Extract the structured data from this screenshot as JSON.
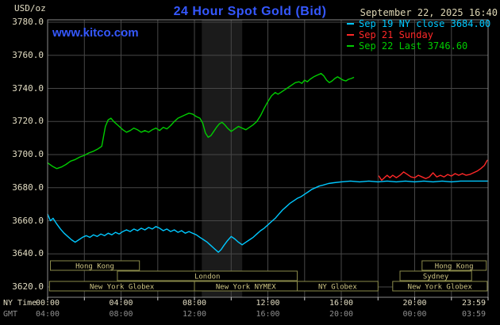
{
  "header": {
    "title": "24 Hour Spot Gold (Bid)",
    "datetime": "September 22, 2025 16:40",
    "units_label": "USD/oz",
    "watermark": "www.kitco.com"
  },
  "colors": {
    "title_blue": "#3558ff",
    "date_tan": "#ddd6b4",
    "axis_tan": "#e2dcc2",
    "gmt_gray": "#8f8f8f",
    "grid": "#474747",
    "border": "#8a8a8a",
    "tick": "#cccccc",
    "plot_bg": "#000000",
    "band": "#1b1b1b",
    "session_border": "#8a8a4a",
    "session_text": "#cfc684",
    "cyan": "#00c8ff",
    "red": "#ff2828",
    "green": "#00cc00"
  },
  "legend": [
    {
      "label": "Sep 19 NY close 3684.00",
      "color": "#00c8ff"
    },
    {
      "label": "Sep 21 Sunday",
      "color": "#ff2828"
    },
    {
      "label": "Sep 22 Last 3746.60",
      "color": "#00cc00"
    }
  ],
  "xaxis": {
    "ny_label": "NY Time",
    "gmt_label": "GMT",
    "ticks": [
      {
        "h": 0,
        "ny": "00:00",
        "gmt": "04:00"
      },
      {
        "h": 4,
        "ny": "04:00",
        "gmt": "08:00"
      },
      {
        "h": 8,
        "ny": "08:00",
        "gmt": "12:00"
      },
      {
        "h": 12,
        "ny": "12:00",
        "gmt": "16:00"
      },
      {
        "h": 16,
        "ny": "16:00",
        "gmt": "20:00"
      },
      {
        "h": 20,
        "ny": "20:00",
        "gmt": "00:00"
      },
      {
        "h": 23.983,
        "ny": "23:59",
        "gmt": "03:59"
      }
    ]
  },
  "sessions": {
    "rows": [
      {
        "row": 0,
        "boxes": [
          {
            "label": "Hong Kong",
            "start": 0.15,
            "end": 5.0
          },
          {
            "label": "Hong Kong",
            "start": 20.4,
            "end": 23.9
          }
        ]
      },
      {
        "row": 1,
        "boxes": [
          {
            "label": "London",
            "start": 3.8,
            "end": 13.6
          },
          {
            "label": "Sydney",
            "start": 19.2,
            "end": 23.1
          }
        ]
      },
      {
        "row": 2,
        "boxes": [
          {
            "label": "New York Globex",
            "start": 0.1,
            "end": 8.0
          },
          {
            "label": "New York NYMEX",
            "start": 8.0,
            "end": 13.6
          },
          {
            "label": "NY Globex",
            "start": 13.6,
            "end": 18.0
          },
          {
            "label": "New York Globex",
            "start": 18.8,
            "end": 23.95
          }
        ]
      }
    ]
  },
  "chart_data": {
    "type": "line",
    "title": "24 Hour Spot Gold (Bid)",
    "ylabel": "USD/oz",
    "ylim": [
      3620,
      3780
    ],
    "ytick_step": 20,
    "xlim_hours": [
      0,
      24
    ],
    "grid": true,
    "legend_position": "top-right",
    "shaded_band_hours": [
      8.4,
      10.6
    ],
    "xticks_ny": [
      "00:00",
      "04:00",
      "08:00",
      "12:00",
      "16:00",
      "20:00",
      "23:59"
    ],
    "xticks_gmt": [
      "04:00",
      "08:00",
      "12:00",
      "16:00",
      "20:00",
      "00:00",
      "03:59"
    ],
    "series": [
      {
        "id": "sep19",
        "name": "Sep 19 NY close",
        "color": "#00c8ff",
        "close": 3684.0,
        "points": [
          [
            0,
            3664
          ],
          [
            0.15,
            3660
          ],
          [
            0.3,
            3661.5
          ],
          [
            0.5,
            3658
          ],
          [
            0.7,
            3655
          ],
          [
            0.9,
            3652.5
          ],
          [
            1.1,
            3650.5
          ],
          [
            1.3,
            3648.5
          ],
          [
            1.5,
            3647
          ],
          [
            1.7,
            3648.5
          ],
          [
            1.9,
            3650
          ],
          [
            2.1,
            3651
          ],
          [
            2.3,
            3650
          ],
          [
            2.5,
            3651.5
          ],
          [
            2.7,
            3650.5
          ],
          [
            2.9,
            3652
          ],
          [
            3.1,
            3651
          ],
          [
            3.3,
            3652.5
          ],
          [
            3.5,
            3651.5
          ],
          [
            3.7,
            3653
          ],
          [
            3.9,
            3652
          ],
          [
            4.1,
            3653.5
          ],
          [
            4.3,
            3654.5
          ],
          [
            4.5,
            3653.5
          ],
          [
            4.7,
            3655
          ],
          [
            4.9,
            3654
          ],
          [
            5.1,
            3655.5
          ],
          [
            5.3,
            3654.5
          ],
          [
            5.5,
            3656
          ],
          [
            5.7,
            3655
          ],
          [
            5.9,
            3656.5
          ],
          [
            6.1,
            3655.5
          ],
          [
            6.3,
            3654
          ],
          [
            6.5,
            3655
          ],
          [
            6.7,
            3653.5
          ],
          [
            6.9,
            3654.5
          ],
          [
            7.1,
            3653
          ],
          [
            7.3,
            3654
          ],
          [
            7.5,
            3652.5
          ],
          [
            7.7,
            3653.5
          ],
          [
            7.9,
            3652.5
          ],
          [
            8.1,
            3651.5
          ],
          [
            8.3,
            3650
          ],
          [
            8.5,
            3648.5
          ],
          [
            8.7,
            3647
          ],
          [
            8.9,
            3645
          ],
          [
            9.1,
            3643
          ],
          [
            9.3,
            3641
          ],
          [
            9.45,
            3642.5
          ],
          [
            9.6,
            3645
          ],
          [
            9.8,
            3648
          ],
          [
            10,
            3650.5
          ],
          [
            10.2,
            3649
          ],
          [
            10.4,
            3647
          ],
          [
            10.6,
            3645.5
          ],
          [
            10.8,
            3647
          ],
          [
            11,
            3648.5
          ],
          [
            11.2,
            3650
          ],
          [
            11.4,
            3652
          ],
          [
            11.6,
            3654
          ],
          [
            11.8,
            3655.5
          ],
          [
            12,
            3657.5
          ],
          [
            12.2,
            3659.5
          ],
          [
            12.4,
            3661.5
          ],
          [
            12.6,
            3664
          ],
          [
            12.8,
            3666.5
          ],
          [
            13,
            3668.5
          ],
          [
            13.2,
            3670.5
          ],
          [
            13.4,
            3672
          ],
          [
            13.6,
            3673.5
          ],
          [
            13.8,
            3674.5
          ],
          [
            14,
            3676
          ],
          [
            14.2,
            3677.5
          ],
          [
            14.4,
            3679
          ],
          [
            14.6,
            3680
          ],
          [
            14.8,
            3681
          ],
          [
            15,
            3681.5
          ],
          [
            15.3,
            3682.5
          ],
          [
            15.6,
            3683
          ],
          [
            16,
            3683.5
          ],
          [
            16.5,
            3684
          ],
          [
            17,
            3683.5
          ],
          [
            17.5,
            3684
          ],
          [
            18,
            3683.5
          ],
          [
            18.5,
            3684
          ],
          [
            19,
            3683.5
          ],
          [
            19.5,
            3684
          ],
          [
            20,
            3683.5
          ],
          [
            20.5,
            3684
          ],
          [
            21,
            3683.5
          ],
          [
            21.5,
            3684
          ],
          [
            22,
            3683.5
          ],
          [
            22.5,
            3684
          ],
          [
            23,
            3684
          ],
          [
            23.5,
            3684
          ],
          [
            24,
            3684
          ]
        ]
      },
      {
        "id": "sep21",
        "name": "Sep 21 Sunday",
        "color": "#ff2828",
        "points": [
          [
            18.05,
            3687
          ],
          [
            18.2,
            3684.5
          ],
          [
            18.35,
            3686
          ],
          [
            18.5,
            3687.5
          ],
          [
            18.65,
            3686
          ],
          [
            18.8,
            3687.5
          ],
          [
            19,
            3686
          ],
          [
            19.2,
            3687.5
          ],
          [
            19.4,
            3689.5
          ],
          [
            19.6,
            3688
          ],
          [
            19.8,
            3686.5
          ],
          [
            20,
            3686
          ],
          [
            20.2,
            3687.5
          ],
          [
            20.4,
            3686.5
          ],
          [
            20.6,
            3685.5
          ],
          [
            20.8,
            3686.5
          ],
          [
            21,
            3689
          ],
          [
            21.2,
            3686.5
          ],
          [
            21.4,
            3687.5
          ],
          [
            21.6,
            3686.5
          ],
          [
            21.8,
            3688
          ],
          [
            22,
            3687
          ],
          [
            22.2,
            3688.5
          ],
          [
            22.4,
            3687.5
          ],
          [
            22.6,
            3688.5
          ],
          [
            22.8,
            3687.5
          ],
          [
            23,
            3688
          ],
          [
            23.2,
            3689
          ],
          [
            23.4,
            3690
          ],
          [
            23.6,
            3691.5
          ],
          [
            23.8,
            3693.5
          ],
          [
            23.95,
            3696.5
          ]
        ]
      },
      {
        "id": "sep22",
        "name": "Sep 22 Last",
        "color": "#00cc00",
        "last": 3746.6,
        "points": [
          [
            0,
            3695
          ],
          [
            0.25,
            3693
          ],
          [
            0.5,
            3691.5
          ],
          [
            0.75,
            3692.5
          ],
          [
            1,
            3694
          ],
          [
            1.25,
            3696
          ],
          [
            1.5,
            3697
          ],
          [
            1.75,
            3698.5
          ],
          [
            2,
            3699.5
          ],
          [
            2.25,
            3701
          ],
          [
            2.5,
            3702
          ],
          [
            2.75,
            3703.5
          ],
          [
            2.95,
            3705
          ],
          [
            3.05,
            3711
          ],
          [
            3.15,
            3717
          ],
          [
            3.3,
            3721
          ],
          [
            3.45,
            3722
          ],
          [
            3.6,
            3720
          ],
          [
            3.75,
            3718.5
          ],
          [
            3.9,
            3717
          ],
          [
            4.1,
            3715
          ],
          [
            4.3,
            3713.5
          ],
          [
            4.5,
            3714.5
          ],
          [
            4.7,
            3716
          ],
          [
            4.9,
            3715
          ],
          [
            5.1,
            3713.5
          ],
          [
            5.3,
            3714.5
          ],
          [
            5.5,
            3713.5
          ],
          [
            5.7,
            3715
          ],
          [
            5.9,
            3716
          ],
          [
            6.1,
            3714.5
          ],
          [
            6.3,
            3716.5
          ],
          [
            6.5,
            3715.5
          ],
          [
            6.7,
            3717.5
          ],
          [
            6.9,
            3720
          ],
          [
            7.1,
            3722
          ],
          [
            7.3,
            3723
          ],
          [
            7.5,
            3724
          ],
          [
            7.7,
            3725
          ],
          [
            7.9,
            3724.5
          ],
          [
            8.1,
            3723
          ],
          [
            8.3,
            3722
          ],
          [
            8.45,
            3719
          ],
          [
            8.6,
            3713
          ],
          [
            8.75,
            3710.5
          ],
          [
            8.9,
            3711.5
          ],
          [
            9.05,
            3714
          ],
          [
            9.2,
            3716.5
          ],
          [
            9.35,
            3718.5
          ],
          [
            9.5,
            3719.5
          ],
          [
            9.65,
            3718
          ],
          [
            9.8,
            3716
          ],
          [
            10,
            3714
          ],
          [
            10.2,
            3715.5
          ],
          [
            10.4,
            3717
          ],
          [
            10.6,
            3716
          ],
          [
            10.8,
            3715
          ],
          [
            11,
            3716.5
          ],
          [
            11.2,
            3718
          ],
          [
            11.4,
            3720
          ],
          [
            11.6,
            3723.5
          ],
          [
            11.8,
            3728
          ],
          [
            12,
            3732
          ],
          [
            12.2,
            3735.5
          ],
          [
            12.4,
            3737.5
          ],
          [
            12.55,
            3736.5
          ],
          [
            12.7,
            3737.5
          ],
          [
            12.9,
            3739
          ],
          [
            13.1,
            3740.5
          ],
          [
            13.3,
            3742
          ],
          [
            13.5,
            3743.5
          ],
          [
            13.7,
            3744
          ],
          [
            13.85,
            3743
          ],
          [
            14,
            3745
          ],
          [
            14.15,
            3744
          ],
          [
            14.3,
            3745.5
          ],
          [
            14.5,
            3747
          ],
          [
            14.7,
            3748
          ],
          [
            14.9,
            3749
          ],
          [
            15.05,
            3747.5
          ],
          [
            15.2,
            3745
          ],
          [
            15.35,
            3743.5
          ],
          [
            15.5,
            3744.5
          ],
          [
            15.65,
            3746
          ],
          [
            15.8,
            3747
          ],
          [
            15.95,
            3746
          ],
          [
            16.1,
            3745
          ],
          [
            16.25,
            3744.5
          ],
          [
            16.4,
            3745.5
          ],
          [
            16.55,
            3746
          ],
          [
            16.67,
            3746.6
          ]
        ]
      }
    ]
  }
}
